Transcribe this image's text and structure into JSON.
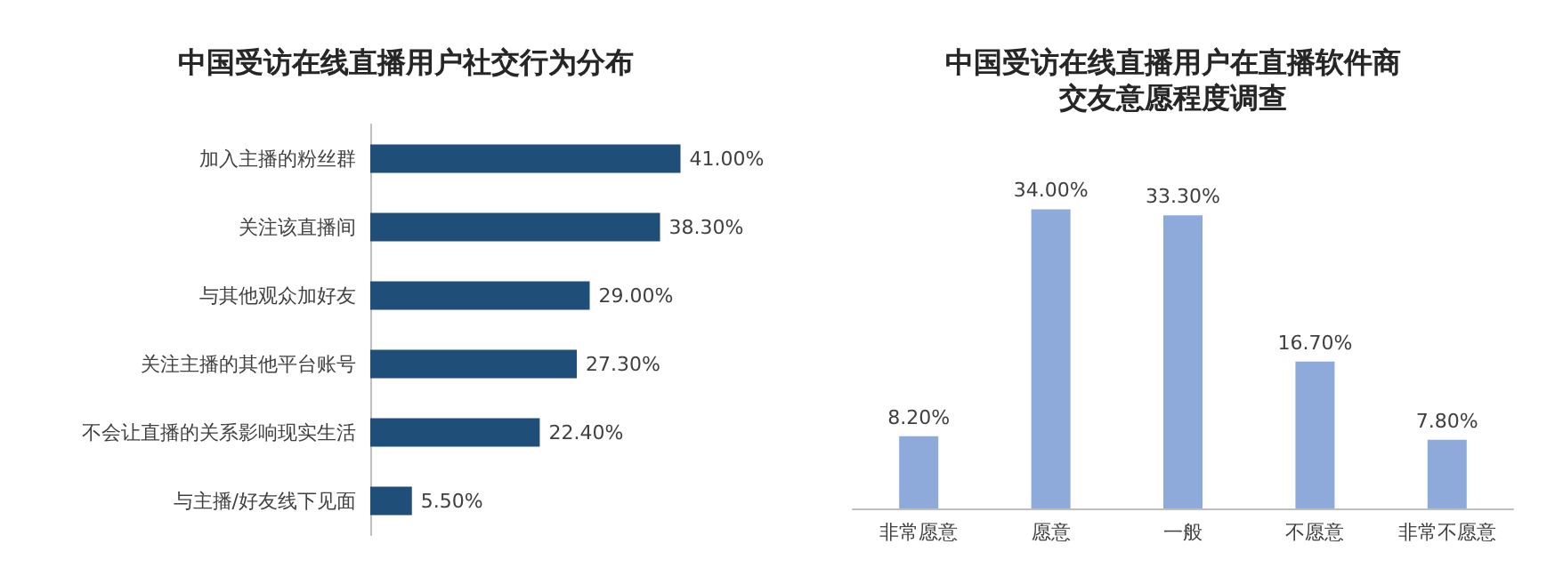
{
  "chart_data": [
    {
      "type": "bar",
      "orientation": "horizontal",
      "title": "中国受访在线直播用户社交行为分布",
      "categories": [
        "加入主播的粉丝群",
        "关注该直播间",
        "与其他观众加好友",
        "关注主播的其他平台账号",
        "不会让直播的关系影响现实生活",
        "与主播/好友线下见面"
      ],
      "values": [
        41.0,
        38.3,
        29.0,
        27.3,
        22.4,
        5.5
      ],
      "value_labels": [
        "41.00%",
        "38.30%",
        "29.00%",
        "27.30%",
        "22.40%",
        "5.50%"
      ],
      "color": "#1f4e79",
      "tick_labels": "y"
    },
    {
      "type": "bar",
      "title": "中国受访在线直播用户在直播软件商交友意愿程度调查",
      "categories": [
        "非常愿意",
        "愿意",
        "一般",
        "不愿意",
        "非常不愿意"
      ],
      "values": [
        8.2,
        34.0,
        33.3,
        16.7,
        7.8
      ],
      "value_labels": [
        "8.20%",
        "34.00%",
        "33.30%",
        "16.70%",
        "7.80%"
      ],
      "color": "#8eaadb",
      "tick_labels": "x"
    }
  ]
}
